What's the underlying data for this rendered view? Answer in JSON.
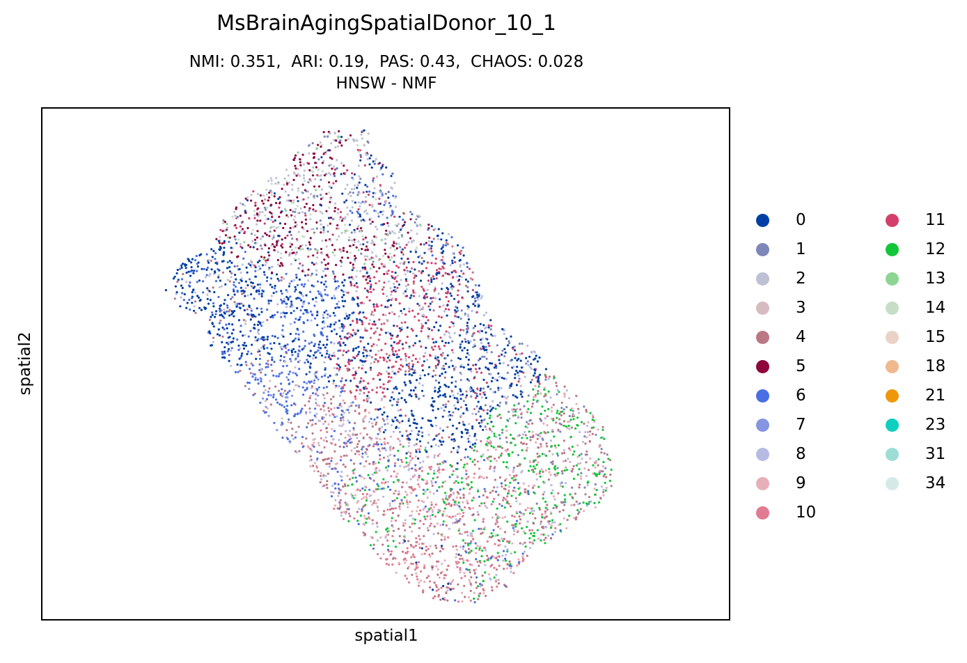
{
  "chart_data": {
    "type": "scatter",
    "title": "MsBrainAgingSpatialDonor_10_1",
    "subtitle_lines": [
      "NMI: 0.351,  ARI: 0.19,  PAS: 0.43,  CHAOS: 0.028",
      "HNSW - NMF"
    ],
    "xlabel": "spatial1",
    "ylabel": "spatial2",
    "grid": false,
    "legend_placement": "right, outside plot, two columns",
    "categories": [
      {
        "name": "0",
        "color": "#023fa5"
      },
      {
        "name": "1",
        "color": "#7d87b9"
      },
      {
        "name": "2",
        "color": "#bec1d4"
      },
      {
        "name": "3",
        "color": "#d6bcc0"
      },
      {
        "name": "4",
        "color": "#bb7784"
      },
      {
        "name": "5",
        "color": "#8e063b"
      },
      {
        "name": "6",
        "color": "#4a6fe3"
      },
      {
        "name": "7",
        "color": "#8595e1"
      },
      {
        "name": "8",
        "color": "#b5bbe3"
      },
      {
        "name": "9",
        "color": "#e6afb9"
      },
      {
        "name": "10",
        "color": "#e07b91"
      },
      {
        "name": "11",
        "color": "#d33f6a"
      },
      {
        "name": "12",
        "color": "#11c638"
      },
      {
        "name": "13",
        "color": "#8dd593"
      },
      {
        "name": "14",
        "color": "#c6dec7"
      },
      {
        "name": "15",
        "color": "#ead3c6"
      },
      {
        "name": "18",
        "color": "#f0b98d"
      },
      {
        "name": "21",
        "color": "#ef9708"
      },
      {
        "name": "23",
        "color": "#0fcfc0"
      },
      {
        "name": "31",
        "color": "#9cded6"
      },
      {
        "name": "34",
        "color": "#d5eae7"
      }
    ]
  }
}
